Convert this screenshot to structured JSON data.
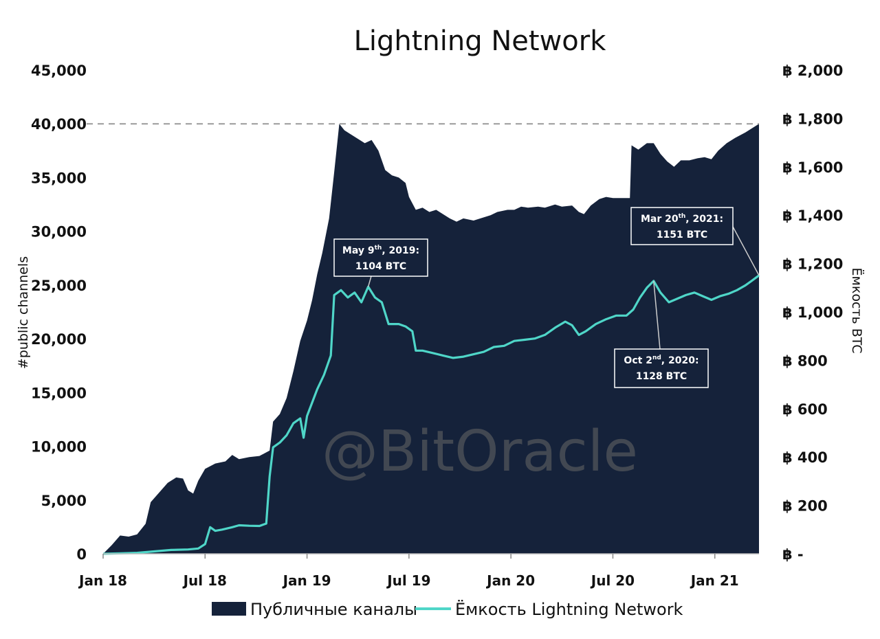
{
  "chart_data": {
    "type": "area",
    "title": "Lightning Network",
    "ylabel_left": "#public channels",
    "ylabel_right": "Ёмкость BTC",
    "watermark": "@BitOracle",
    "x_tick_labels": [
      "Jan 18",
      "Jul 18",
      "Jan 19",
      "Jul 19",
      "Jan 20",
      "Jul 20",
      "Jan 21"
    ],
    "x_tick_positions_months": [
      0,
      6,
      12,
      18,
      24,
      30,
      36
    ],
    "x_range_months": [
      0,
      38.6
    ],
    "y_left": {
      "range": [
        0,
        45000
      ],
      "ticks": [
        0,
        5000,
        10000,
        15000,
        20000,
        25000,
        30000,
        35000,
        40000,
        45000
      ],
      "tick_labels": [
        "0",
        "5,000",
        "10,000",
        "15,000",
        "20,000",
        "25,000",
        "30,000",
        "35,000",
        "40,000",
        "45,000"
      ]
    },
    "y_right": {
      "range": [
        0,
        2000
      ],
      "ticks": [
        0,
        200,
        400,
        600,
        800,
        1000,
        1200,
        1400,
        1600,
        1800,
        2000
      ],
      "tick_labels": [
        "฿ -",
        "฿ 200",
        "฿ 400",
        "฿ 600",
        "฿ 800",
        "฿ 1,000",
        "฿ 1,200",
        "฿ 1,400",
        "฿ 1,600",
        "฿ 1,800",
        "฿ 2,000"
      ]
    },
    "reference_line": {
      "axis": "left",
      "value": 40000,
      "style": "dashed"
    },
    "series": [
      {
        "name": "Публичные каналы",
        "axis": "left",
        "kind": "area",
        "color": "#15223a",
        "points": [
          [
            0,
            0
          ],
          [
            0.5,
            800
          ],
          [
            1.0,
            1700
          ],
          [
            1.5,
            1600
          ],
          [
            2.0,
            1800
          ],
          [
            2.5,
            2800
          ],
          [
            2.8,
            4800
          ],
          [
            3.3,
            5700
          ],
          [
            3.8,
            6600
          ],
          [
            4.3,
            7100
          ],
          [
            4.7,
            7000
          ],
          [
            5.0,
            5900
          ],
          [
            5.3,
            5600
          ],
          [
            5.6,
            6800
          ],
          [
            6.0,
            7900
          ],
          [
            6.6,
            8400
          ],
          [
            7.2,
            8600
          ],
          [
            7.6,
            9200
          ],
          [
            8.0,
            8800
          ],
          [
            8.6,
            9000
          ],
          [
            9.2,
            9100
          ],
          [
            9.8,
            9600
          ],
          [
            10.0,
            12300
          ],
          [
            10.4,
            13000
          ],
          [
            10.8,
            14500
          ],
          [
            11.2,
            17000
          ],
          [
            11.6,
            19800
          ],
          [
            12.0,
            21700
          ],
          [
            12.3,
            23600
          ],
          [
            12.6,
            26000
          ],
          [
            12.9,
            28000
          ],
          [
            13.3,
            31200
          ],
          [
            13.6,
            35500
          ],
          [
            13.9,
            40000
          ],
          [
            14.2,
            39400
          ],
          [
            14.6,
            39000
          ],
          [
            15.0,
            38600
          ],
          [
            15.4,
            38200
          ],
          [
            15.8,
            38500
          ],
          [
            16.2,
            37500
          ],
          [
            16.6,
            35700
          ],
          [
            17.0,
            35200
          ],
          [
            17.4,
            35000
          ],
          [
            17.8,
            34500
          ],
          [
            18.0,
            33200
          ],
          [
            18.4,
            32000
          ],
          [
            18.8,
            32200
          ],
          [
            19.2,
            31800
          ],
          [
            19.6,
            32000
          ],
          [
            20.0,
            31600
          ],
          [
            20.4,
            31200
          ],
          [
            20.8,
            30900
          ],
          [
            21.2,
            31200
          ],
          [
            21.8,
            31000
          ],
          [
            22.2,
            31200
          ],
          [
            22.8,
            31500
          ],
          [
            23.2,
            31800
          ],
          [
            23.8,
            32000
          ],
          [
            24.2,
            32000
          ],
          [
            24.6,
            32300
          ],
          [
            25.0,
            32200
          ],
          [
            25.6,
            32300
          ],
          [
            26.0,
            32200
          ],
          [
            26.6,
            32500
          ],
          [
            27.0,
            32300
          ],
          [
            27.6,
            32400
          ],
          [
            28.0,
            31800
          ],
          [
            28.3,
            31600
          ],
          [
            28.7,
            32400
          ],
          [
            29.2,
            33000
          ],
          [
            29.6,
            33200
          ],
          [
            30.0,
            33100
          ],
          [
            30.6,
            33100
          ],
          [
            31.0,
            33100
          ],
          [
            31.1,
            38000
          ],
          [
            31.5,
            37600
          ],
          [
            32.0,
            38200
          ],
          [
            32.4,
            38200
          ],
          [
            32.8,
            37200
          ],
          [
            33.2,
            36500
          ],
          [
            33.6,
            36000
          ],
          [
            34.0,
            36600
          ],
          [
            34.5,
            36600
          ],
          [
            35.0,
            36800
          ],
          [
            35.4,
            36900
          ],
          [
            35.8,
            36700
          ],
          [
            36.2,
            37500
          ],
          [
            36.7,
            38200
          ],
          [
            37.2,
            38700
          ],
          [
            37.8,
            39200
          ],
          [
            38.2,
            39600
          ],
          [
            38.6,
            40000
          ]
        ]
      },
      {
        "name": "Ёмкость Lightning Network",
        "axis": "right",
        "kind": "line",
        "color": "#4fd6c8",
        "points": [
          [
            0,
            0
          ],
          [
            1.0,
            2
          ],
          [
            2.0,
            4
          ],
          [
            3.0,
            10
          ],
          [
            4.0,
            16
          ],
          [
            5.0,
            18
          ],
          [
            5.6,
            22
          ],
          [
            6.0,
            40
          ],
          [
            6.3,
            110
          ],
          [
            6.6,
            95
          ],
          [
            7.0,
            100
          ],
          [
            7.6,
            110
          ],
          [
            8.0,
            118
          ],
          [
            8.6,
            116
          ],
          [
            9.2,
            115
          ],
          [
            9.6,
            125
          ],
          [
            9.8,
            320
          ],
          [
            10.0,
            440
          ],
          [
            10.4,
            460
          ],
          [
            10.8,
            490
          ],
          [
            11.2,
            540
          ],
          [
            11.6,
            560
          ],
          [
            11.8,
            480
          ],
          [
            12.0,
            570
          ],
          [
            12.3,
            625
          ],
          [
            12.6,
            680
          ],
          [
            13.0,
            740
          ],
          [
            13.4,
            820
          ],
          [
            13.6,
            1070
          ],
          [
            14.0,
            1090
          ],
          [
            14.4,
            1060
          ],
          [
            14.8,
            1080
          ],
          [
            15.2,
            1040
          ],
          [
            15.6,
            1104
          ],
          [
            16.0,
            1060
          ],
          [
            16.4,
            1040
          ],
          [
            16.8,
            950
          ],
          [
            17.4,
            950
          ],
          [
            17.8,
            940
          ],
          [
            18.2,
            920
          ],
          [
            18.4,
            840
          ],
          [
            18.8,
            840
          ],
          [
            19.4,
            830
          ],
          [
            20.0,
            820
          ],
          [
            20.6,
            810
          ],
          [
            21.2,
            815
          ],
          [
            21.8,
            825
          ],
          [
            22.4,
            835
          ],
          [
            23.0,
            855
          ],
          [
            23.6,
            860
          ],
          [
            24.2,
            880
          ],
          [
            24.8,
            885
          ],
          [
            25.4,
            890
          ],
          [
            26.0,
            905
          ],
          [
            26.6,
            935
          ],
          [
            27.2,
            960
          ],
          [
            27.6,
            945
          ],
          [
            28.0,
            905
          ],
          [
            28.4,
            920
          ],
          [
            29.0,
            950
          ],
          [
            29.6,
            970
          ],
          [
            30.2,
            985
          ],
          [
            30.8,
            985
          ],
          [
            31.2,
            1010
          ],
          [
            31.6,
            1060
          ],
          [
            32.0,
            1100
          ],
          [
            32.4,
            1128
          ],
          [
            32.8,
            1080
          ],
          [
            33.3,
            1040
          ],
          [
            33.8,
            1055
          ],
          [
            34.3,
            1070
          ],
          [
            34.8,
            1080
          ],
          [
            35.3,
            1065
          ],
          [
            35.8,
            1050
          ],
          [
            36.3,
            1065
          ],
          [
            36.8,
            1075
          ],
          [
            37.3,
            1090
          ],
          [
            37.8,
            1110
          ],
          [
            38.2,
            1130
          ],
          [
            38.6,
            1151
          ]
        ]
      }
    ],
    "annotations": [
      {
        "id": "ann-may-2019",
        "x_month": 15.6,
        "y_right": 1104,
        "line1_pre": "May 9",
        "line1_sup": "th",
        "line1_post": ", 2019:",
        "line2": "1104 BTC"
      },
      {
        "id": "ann-oct-2020",
        "x_month": 32.4,
        "y_right": 1128,
        "line1_pre": "Oct 2",
        "line1_sup": "nd",
        "line1_post": ", 2020:",
        "line2": "1128 BTC"
      },
      {
        "id": "ann-mar-2021",
        "x_month": 38.6,
        "y_right": 1151,
        "line1_pre": "Mar 20",
        "line1_sup": "th",
        "line1_post": ", 2021:",
        "line2": "1151 BTC"
      }
    ],
    "legend": {
      "placement": "bottom-center"
    }
  }
}
